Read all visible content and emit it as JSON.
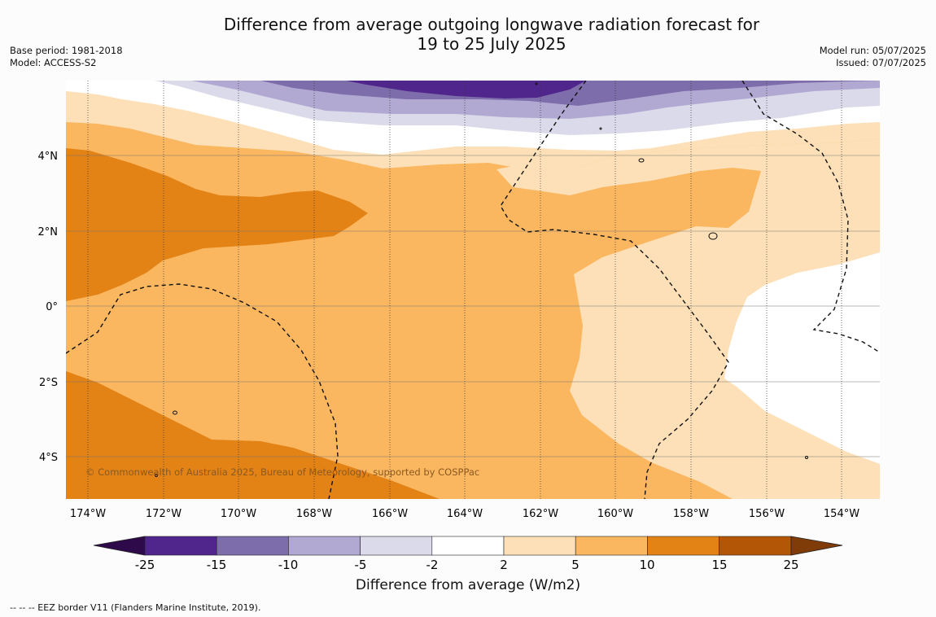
{
  "title_line1": "Difference from average outgoing longwave radiation forecast for",
  "title_line2": "19 to 25 July 2025",
  "base_period": "Base period: 1981-2018",
  "model": "Model: ACCESS-S2",
  "model_run": "Model run: 05/07/2025",
  "issued": "Issued: 07/07/2025",
  "copyright": "© Commonwealth of Australia 2025, Bureau of Meteorology, supported by COSPPac",
  "lat_labels": [
    "4°N",
    "2°N",
    "0°",
    "2°S",
    "4°S"
  ],
  "lon_labels": [
    "174°W",
    "172°W",
    "170°W",
    "168°W",
    "166°W",
    "164°W",
    "162°W",
    "160°W",
    "158°W",
    "156°W",
    "154°W"
  ],
  "colorbar": {
    "title": "Difference from average (W/m2)",
    "ticks": [
      "-25",
      "-15",
      "-10",
      "-5",
      "-2",
      "2",
      "5",
      "10",
      "15",
      "25"
    ],
    "colors": [
      "#51268c",
      "#7e6dab",
      "#b1a9d2",
      "#dadaea",
      "#ffffff",
      "#fde0b7",
      "#fab760",
      "#e38215",
      "#b35707"
    ],
    "under_color": "#2e0a4b",
    "over_color": "#7f3b08"
  },
  "footer": "--  --  -- EEZ border V11 (Flanders Marine Institute, 2019)."
}
